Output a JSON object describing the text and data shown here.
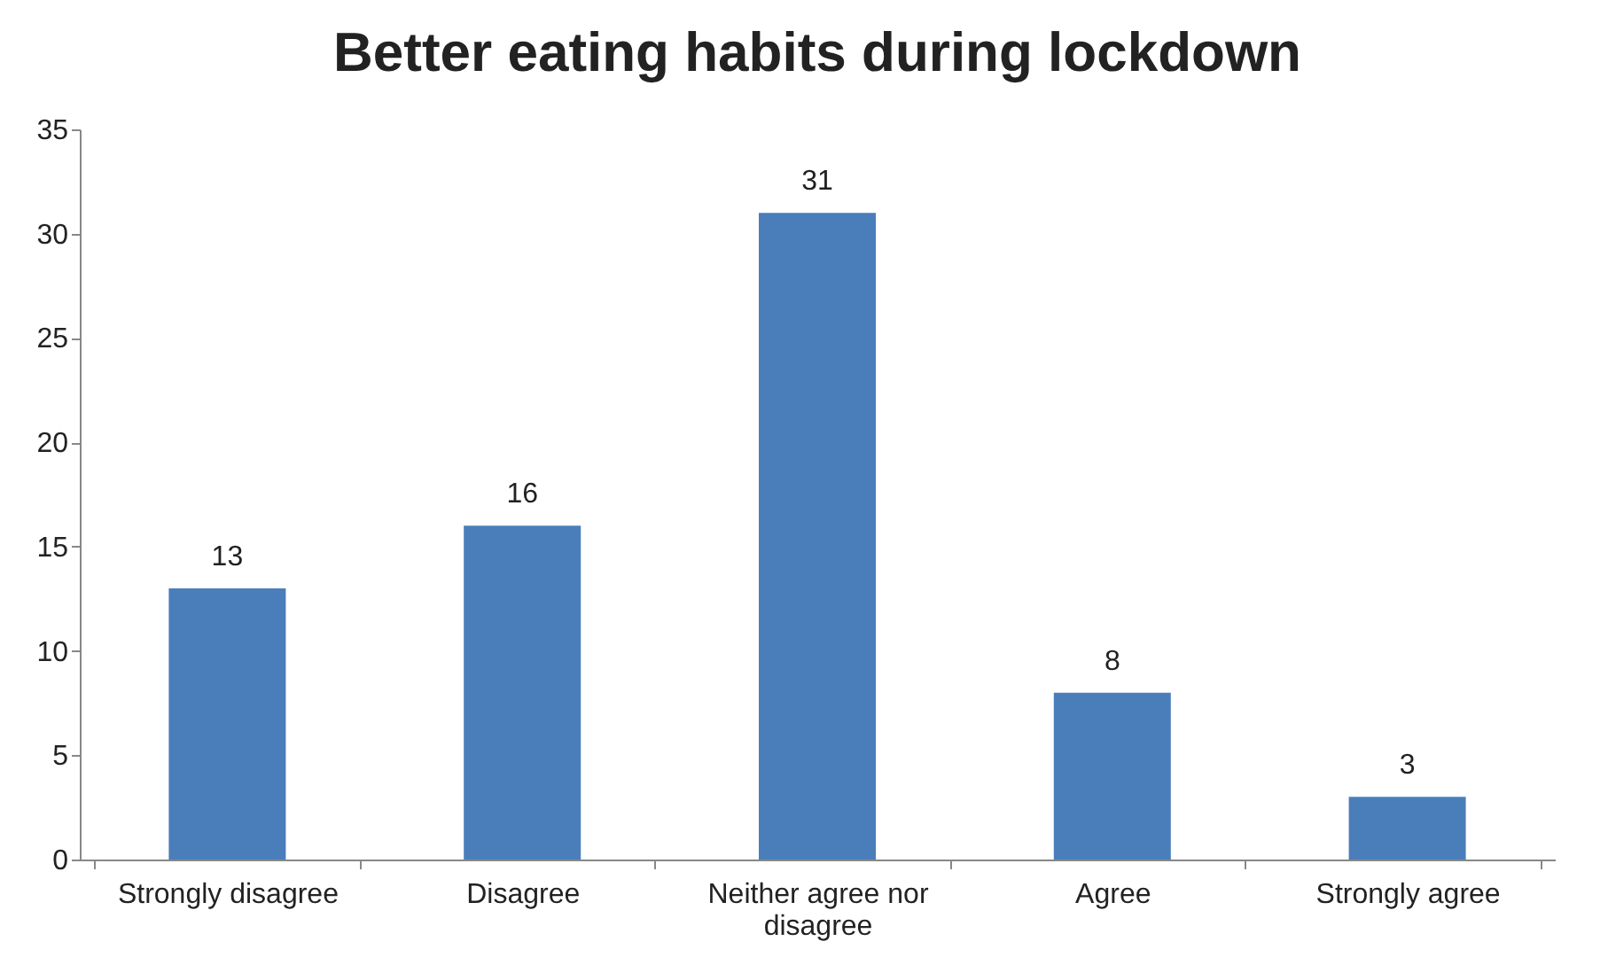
{
  "chart_data": {
    "type": "bar",
    "title": "Better eating habits during lockdown",
    "categories": [
      "Strongly disagree",
      "Disagree",
      "Neither agree nor disagree",
      "Agree",
      "Strongly agree"
    ],
    "values": [
      13,
      16,
      31,
      8,
      3
    ],
    "color": "#4a7ebb",
    "ylim": [
      0,
      35
    ],
    "yticks": [
      0,
      5,
      10,
      15,
      20,
      25,
      30,
      35
    ],
    "grid": false,
    "data_labels": true
  }
}
